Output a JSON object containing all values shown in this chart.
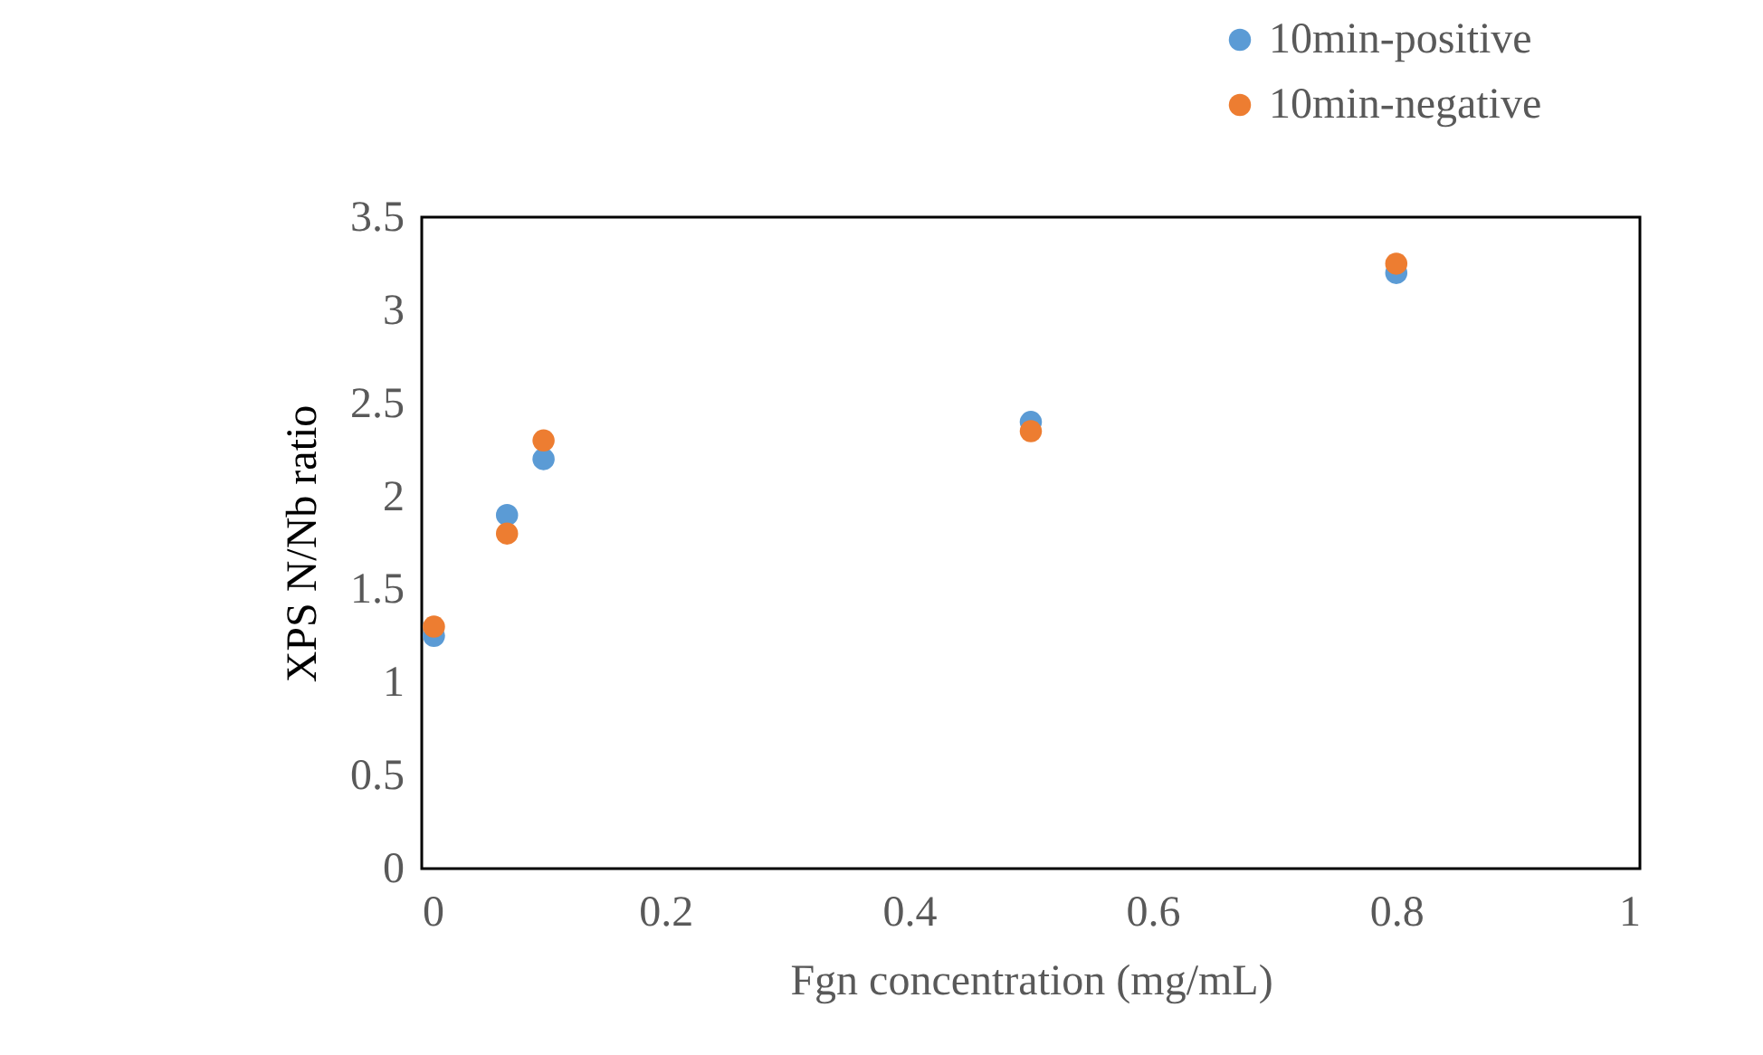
{
  "chart_data": {
    "type": "scatter",
    "xlabel": "Fgn  concentration (mg/mL)",
    "ylabel": "XPS N/Nb ratio",
    "x": [
      0.01,
      0.07,
      0.1,
      0.5,
      0.8
    ],
    "series": [
      {
        "name": "10min-positive",
        "color": "#5b9bd5",
        "values": [
          1.25,
          1.9,
          2.2,
          2.4,
          3.2
        ]
      },
      {
        "name": "10min-negative",
        "color": "#ed7d31",
        "values": [
          1.3,
          1.8,
          2.3,
          2.35,
          3.25
        ]
      }
    ],
    "xlim": [
      0,
      1
    ],
    "xticks": [
      0,
      0.2,
      0.4,
      0.6,
      0.8,
      1
    ],
    "ylim": [
      0,
      3.5
    ],
    "yticks": [
      0,
      0.5,
      1,
      1.5,
      2,
      2.5,
      3,
      3.5
    ],
    "grid": false,
    "legend": "top right",
    "marker": "circle"
  }
}
